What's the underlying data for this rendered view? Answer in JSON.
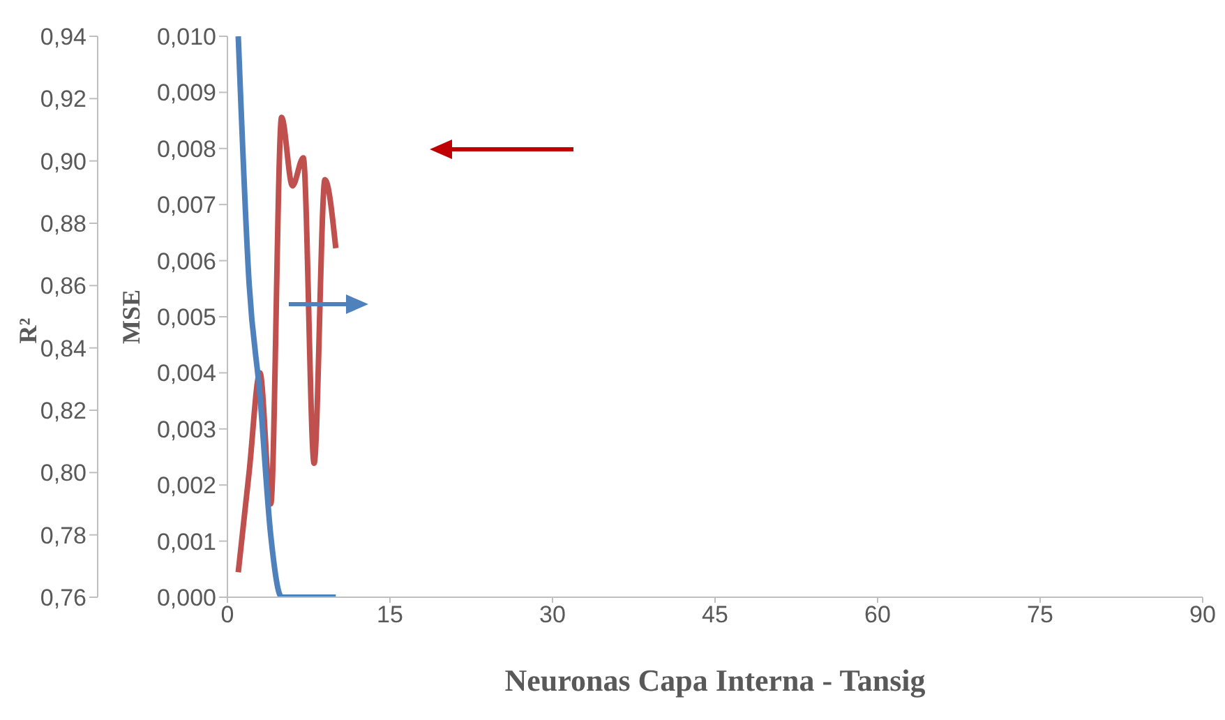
{
  "chart_data": {
    "type": "line",
    "xlabel": "Neuronas Capa Interna - Tansig",
    "ylabel": "R²",
    "y2label": "MSE",
    "series": [
      {
        "color": "#c0504d",
        "x": [
          1,
          2,
          3,
          4,
          5,
          6,
          7,
          8,
          9,
          10
        ],
        "values": [
          0.768,
          0.8,
          0.832,
          0.79,
          0.914,
          0.892,
          0.901,
          0.803,
          0.894,
          0.872
        ]
      },
      {
        "color": "#4f81bd",
        "axis": "y2",
        "x": [
          1,
          2,
          3,
          4,
          5,
          6,
          7,
          8,
          9,
          10
        ],
        "values": [
          0.01,
          0.0056,
          0.0036,
          0.0011,
          0.0,
          0.0,
          0.0,
          0.0,
          0.0,
          0.0
        ]
      }
    ],
    "xlim": [
      0,
      90
    ],
    "xticks": [
      0,
      15,
      30,
      45,
      60,
      75,
      90
    ],
    "ylim": [
      0.76,
      0.94
    ],
    "yticks": [
      {
        "value": 0.76,
        "label": "0,76"
      },
      {
        "value": 0.78,
        "label": "0,78"
      },
      {
        "value": 0.8,
        "label": "0,80"
      },
      {
        "value": 0.82,
        "label": "0,82"
      },
      {
        "value": 0.84,
        "label": "0,84"
      },
      {
        "value": 0.86,
        "label": "0,86"
      },
      {
        "value": 0.88,
        "label": "0,88"
      },
      {
        "value": 0.9,
        "label": "0,90"
      },
      {
        "value": 0.92,
        "label": "0,92"
      },
      {
        "value": 0.94,
        "label": "0,94"
      }
    ],
    "y2lim": [
      0,
      0.01
    ],
    "y2ticks": [
      {
        "value": 0,
        "label": "0,000"
      },
      {
        "value": 0.001,
        "label": "0,001"
      },
      {
        "value": 0.002,
        "label": "0,002"
      },
      {
        "value": 0.003,
        "label": "0,003"
      },
      {
        "value": 0.004,
        "label": "0,004"
      },
      {
        "value": 0.005,
        "label": "0,005"
      },
      {
        "value": 0.006,
        "label": "0,006"
      },
      {
        "value": 0.007,
        "label": "0,007"
      },
      {
        "value": 0.008,
        "label": "0,008"
      },
      {
        "value": 0.009,
        "label": "0,009"
      },
      {
        "value": 0.01,
        "label": "0,010"
      }
    ],
    "grid": false,
    "legend": false,
    "marker": "none",
    "line_style": "solid"
  }
}
